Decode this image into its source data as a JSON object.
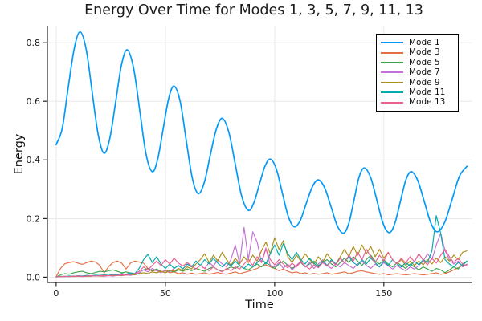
{
  "figure": {
    "title": "Energy Over Time for Modes 1, 3, 5, 7, 9, 11, 13",
    "background": "#ffffff"
  },
  "legend": {
    "position": "top-right",
    "border_color": "#000000"
  },
  "chart_data": {
    "type": "line",
    "title": "Energy Over Time for Modes 1, 3, 5, 7, 9, 11, 13",
    "xlabel": "Time",
    "ylabel": "Energy",
    "xlim": [
      -4,
      190.5
    ],
    "ylim": [
      -0.018,
      0.858
    ],
    "grid": true,
    "grid_color": "#e7e7e7",
    "axis_color": "#242424",
    "legend_position": "top-right",
    "xticks": {
      "values": [
        0,
        50,
        100,
        150
      ],
      "labels": [
        "0",
        "50",
        "100",
        "150"
      ]
    },
    "yticks": {
      "values": [
        0,
        0.2,
        0.4,
        0.6,
        0.8
      ],
      "labels": [
        "0.0",
        "0.2",
        "0.4",
        "0.6",
        "0.8"
      ]
    },
    "series": [
      {
        "id": "mode-1",
        "name": "Mode 1",
        "color": "#009AFA",
        "width": 1.7,
        "smooth": true,
        "points": [
          [
            0,
            0.452
          ],
          [
            2.8,
            0.508
          ],
          [
            5.5,
            0.645
          ],
          [
            8.3,
            0.781
          ],
          [
            11,
            0.837
          ],
          [
            13.8,
            0.776
          ],
          [
            16.5,
            0.63
          ],
          [
            19.3,
            0.484
          ],
          [
            22,
            0.423
          ],
          [
            24.6,
            0.475
          ],
          [
            27.3,
            0.6
          ],
          [
            29.9,
            0.724
          ],
          [
            32.5,
            0.776
          ],
          [
            35.4,
            0.715
          ],
          [
            38.3,
            0.568
          ],
          [
            41.1,
            0.421
          ],
          [
            44,
            0.36
          ],
          [
            46.5,
            0.403
          ],
          [
            49,
            0.506
          ],
          [
            51.5,
            0.609
          ],
          [
            54,
            0.652
          ],
          [
            56.8,
            0.598
          ],
          [
            59.5,
            0.469
          ],
          [
            62.3,
            0.339
          ],
          [
            65,
            0.285
          ],
          [
            67.8,
            0.323
          ],
          [
            70.5,
            0.414
          ],
          [
            73.3,
            0.504
          ],
          [
            76,
            0.542
          ],
          [
            79,
            0.496
          ],
          [
            82,
            0.385
          ],
          [
            85,
            0.274
          ],
          [
            88,
            0.228
          ],
          [
            90.5,
            0.254
          ],
          [
            93,
            0.316
          ],
          [
            95.5,
            0.377
          ],
          [
            98,
            0.403
          ],
          [
            100.8,
            0.369
          ],
          [
            103.5,
            0.288
          ],
          [
            106.3,
            0.206
          ],
          [
            109,
            0.172
          ],
          [
            111.8,
            0.195
          ],
          [
            114.5,
            0.252
          ],
          [
            117.3,
            0.309
          ],
          [
            120,
            0.332
          ],
          [
            122.9,
            0.305
          ],
          [
            125.8,
            0.241
          ],
          [
            128.6,
            0.177
          ],
          [
            131.5,
            0.15
          ],
          [
            133.9,
            0.183
          ],
          [
            136.3,
            0.262
          ],
          [
            138.6,
            0.34
          ],
          [
            141,
            0.373
          ],
          [
            143.9,
            0.341
          ],
          [
            146.8,
            0.263
          ],
          [
            149.6,
            0.184
          ],
          [
            152.5,
            0.152
          ],
          [
            155,
            0.183
          ],
          [
            157.5,
            0.256
          ],
          [
            160,
            0.33
          ],
          [
            162.5,
            0.36
          ],
          [
            165.5,
            0.33
          ],
          [
            168.5,
            0.258
          ],
          [
            171.5,
            0.185
          ],
          [
            174.5,
            0.155
          ],
          [
            177.9,
            0.188
          ],
          [
            181.3,
            0.267
          ],
          [
            184.6,
            0.345
          ],
          [
            188,
            0.378
          ]
        ]
      },
      {
        "id": "mode-3",
        "name": "Mode 3",
        "color": "#E36F47",
        "width": 1.15,
        "smooth": false,
        "t_start": 0,
        "t_step": 2,
        "values": [
          0.002,
          0.03,
          0.046,
          0.05,
          0.053,
          0.048,
          0.044,
          0.05,
          0.055,
          0.052,
          0.04,
          0.015,
          0.036,
          0.05,
          0.055,
          0.048,
          0.028,
          0.048,
          0.055,
          0.052,
          0.048,
          0.03,
          0.02,
          0.025,
          0.018,
          0.022,
          0.015,
          0.018,
          0.012,
          0.015,
          0.01,
          0.014,
          0.01,
          0.012,
          0.015,
          0.01,
          0.013,
          0.016,
          0.012,
          0.01,
          0.014,
          0.018,
          0.012,
          0.016,
          0.02,
          0.025,
          0.03,
          0.038,
          0.042,
          0.035,
          0.03,
          0.022,
          0.028,
          0.02,
          0.015,
          0.018,
          0.012,
          0.015,
          0.01,
          0.013,
          0.01,
          0.012,
          0.015,
          0.01,
          0.012,
          0.015,
          0.018,
          0.012,
          0.015,
          0.02,
          0.022,
          0.018,
          0.015,
          0.012,
          0.01,
          0.012,
          0.008,
          0.01,
          0.012,
          0.01,
          0.008,
          0.01,
          0.012,
          0.01,
          0.008,
          0.01,
          0.012,
          0.015,
          0.01,
          0.012,
          0.018,
          0.025,
          0.032,
          0.04,
          0.042
        ]
      },
      {
        "id": "mode-5",
        "name": "Mode 5",
        "color": "#3DA44E",
        "width": 1.15,
        "smooth": false,
        "t_start": 0,
        "t_step": 2,
        "values": [
          0.001,
          0.008,
          0.012,
          0.01,
          0.015,
          0.018,
          0.02,
          0.015,
          0.012,
          0.016,
          0.02,
          0.018,
          0.022,
          0.025,
          0.02,
          0.015,
          0.018,
          0.014,
          0.01,
          0.015,
          0.025,
          0.03,
          0.022,
          0.028,
          0.02,
          0.015,
          0.022,
          0.018,
          0.025,
          0.02,
          0.028,
          0.022,
          0.03,
          0.025,
          0.02,
          0.03,
          0.035,
          0.025,
          0.02,
          0.028,
          0.035,
          0.03,
          0.04,
          0.03,
          0.025,
          0.035,
          0.045,
          0.035,
          0.05,
          0.04,
          0.03,
          0.045,
          0.055,
          0.04,
          0.03,
          0.04,
          0.05,
          0.035,
          0.045,
          0.055,
          0.04,
          0.05,
          0.06,
          0.045,
          0.035,
          0.05,
          0.065,
          0.05,
          0.07,
          0.055,
          0.04,
          0.06,
          0.075,
          0.055,
          0.045,
          0.06,
          0.045,
          0.035,
          0.05,
          0.04,
          0.03,
          0.045,
          0.035,
          0.025,
          0.035,
          0.028,
          0.02,
          0.03,
          0.025,
          0.015,
          0.025,
          0.035,
          0.028,
          0.045,
          0.055
        ]
      },
      {
        "id": "mode-7",
        "name": "Mode 7",
        "color": "#C371D2",
        "width": 1.15,
        "smooth": false,
        "t_start": 0,
        "t_step": 2,
        "values": [
          0.001,
          0.002,
          0.003,
          0.002,
          0.004,
          0.003,
          0.002,
          0.004,
          0.003,
          0.005,
          0.004,
          0.003,
          0.005,
          0.004,
          0.006,
          0.005,
          0.008,
          0.006,
          0.01,
          0.015,
          0.025,
          0.018,
          0.03,
          0.022,
          0.015,
          0.025,
          0.018,
          0.03,
          0.04,
          0.028,
          0.045,
          0.035,
          0.055,
          0.04,
          0.03,
          0.05,
          0.038,
          0.06,
          0.045,
          0.035,
          0.06,
          0.11,
          0.045,
          0.17,
          0.06,
          0.155,
          0.12,
          0.05,
          0.1,
          0.04,
          0.035,
          0.05,
          0.03,
          0.045,
          0.025,
          0.04,
          0.055,
          0.035,
          0.05,
          0.03,
          0.045,
          0.06,
          0.04,
          0.03,
          0.045,
          0.035,
          0.05,
          0.04,
          0.03,
          0.045,
          0.055,
          0.04,
          0.03,
          0.045,
          0.035,
          0.05,
          0.038,
          0.028,
          0.04,
          0.03,
          0.022,
          0.035,
          0.028,
          0.04,
          0.055,
          0.08,
          0.06,
          0.11,
          0.15,
          0.09,
          0.06,
          0.045,
          0.055,
          0.035,
          0.045
        ]
      },
      {
        "id": "mode-9",
        "name": "Mode 9",
        "color": "#AC8E18",
        "width": 1.15,
        "smooth": false,
        "t_start": 0,
        "t_step": 2,
        "values": [
          0.001,
          0.002,
          0.002,
          0.003,
          0.002,
          0.003,
          0.004,
          0.003,
          0.004,
          0.005,
          0.004,
          0.005,
          0.006,
          0.005,
          0.007,
          0.006,
          0.008,
          0.01,
          0.008,
          0.012,
          0.015,
          0.012,
          0.018,
          0.015,
          0.02,
          0.015,
          0.025,
          0.02,
          0.03,
          0.022,
          0.035,
          0.028,
          0.045,
          0.06,
          0.08,
          0.05,
          0.075,
          0.055,
          0.085,
          0.06,
          0.04,
          0.065,
          0.045,
          0.07,
          0.05,
          0.075,
          0.055,
          0.09,
          0.12,
          0.08,
          0.135,
          0.095,
          0.125,
          0.07,
          0.05,
          0.075,
          0.055,
          0.08,
          0.06,
          0.045,
          0.07,
          0.05,
          0.08,
          0.06,
          0.045,
          0.07,
          0.095,
          0.07,
          0.105,
          0.075,
          0.11,
          0.08,
          0.105,
          0.07,
          0.095,
          0.065,
          0.085,
          0.06,
          0.045,
          0.06,
          0.04,
          0.055,
          0.04,
          0.055,
          0.042,
          0.06,
          0.045,
          0.065,
          0.05,
          0.07,
          0.055,
          0.075,
          0.06,
          0.085,
          0.09
        ]
      },
      {
        "id": "mode-11",
        "name": "Mode 11",
        "color": "#00AAAE",
        "width": 1.15,
        "smooth": false,
        "t_start": 0,
        "t_step": 2,
        "values": [
          0.001,
          0.003,
          0.002,
          0.004,
          0.003,
          0.005,
          0.004,
          0.006,
          0.005,
          0.007,
          0.006,
          0.008,
          0.006,
          0.01,
          0.008,
          0.012,
          0.01,
          0.015,
          0.012,
          0.03,
          0.06,
          0.078,
          0.05,
          0.07,
          0.045,
          0.03,
          0.045,
          0.03,
          0.04,
          0.028,
          0.045,
          0.035,
          0.055,
          0.04,
          0.06,
          0.045,
          0.065,
          0.048,
          0.035,
          0.05,
          0.038,
          0.055,
          0.04,
          0.03,
          0.045,
          0.035,
          0.05,
          0.065,
          0.045,
          0.08,
          0.11,
          0.075,
          0.115,
          0.08,
          0.06,
          0.085,
          0.06,
          0.045,
          0.065,
          0.048,
          0.035,
          0.055,
          0.04,
          0.06,
          0.045,
          0.065,
          0.05,
          0.07,
          0.05,
          0.04,
          0.06,
          0.045,
          0.065,
          0.05,
          0.035,
          0.055,
          0.04,
          0.06,
          0.045,
          0.035,
          0.05,
          0.038,
          0.055,
          0.042,
          0.06,
          0.05,
          0.09,
          0.21,
          0.15,
          0.06,
          0.045,
          0.035,
          0.05,
          0.04,
          0.055
        ]
      },
      {
        "id": "mode-13",
        "name": "Mode 13",
        "color": "#ED5E93",
        "width": 1.15,
        "smooth": false,
        "t_start": 0,
        "t_step": 2,
        "values": [
          0.001,
          0.002,
          0.003,
          0.002,
          0.003,
          0.004,
          0.003,
          0.004,
          0.005,
          0.004,
          0.005,
          0.006,
          0.005,
          0.007,
          0.006,
          0.008,
          0.007,
          0.01,
          0.012,
          0.02,
          0.035,
          0.025,
          0.04,
          0.055,
          0.04,
          0.06,
          0.045,
          0.065,
          0.048,
          0.038,
          0.05,
          0.038,
          0.028,
          0.04,
          0.03,
          0.022,
          0.035,
          0.025,
          0.018,
          0.03,
          0.022,
          0.035,
          0.028,
          0.045,
          0.06,
          0.04,
          0.07,
          0.05,
          0.095,
          0.06,
          0.042,
          0.06,
          0.045,
          0.032,
          0.048,
          0.035,
          0.052,
          0.038,
          0.028,
          0.042,
          0.032,
          0.05,
          0.038,
          0.055,
          0.042,
          0.065,
          0.048,
          0.075,
          0.055,
          0.085,
          0.06,
          0.095,
          0.07,
          0.05,
          0.075,
          0.055,
          0.085,
          0.06,
          0.045,
          0.065,
          0.048,
          0.07,
          0.052,
          0.08,
          0.058,
          0.042,
          0.065,
          0.048,
          0.075,
          0.095,
          0.07,
          0.05,
          0.065,
          0.045,
          0.038
        ]
      }
    ]
  }
}
